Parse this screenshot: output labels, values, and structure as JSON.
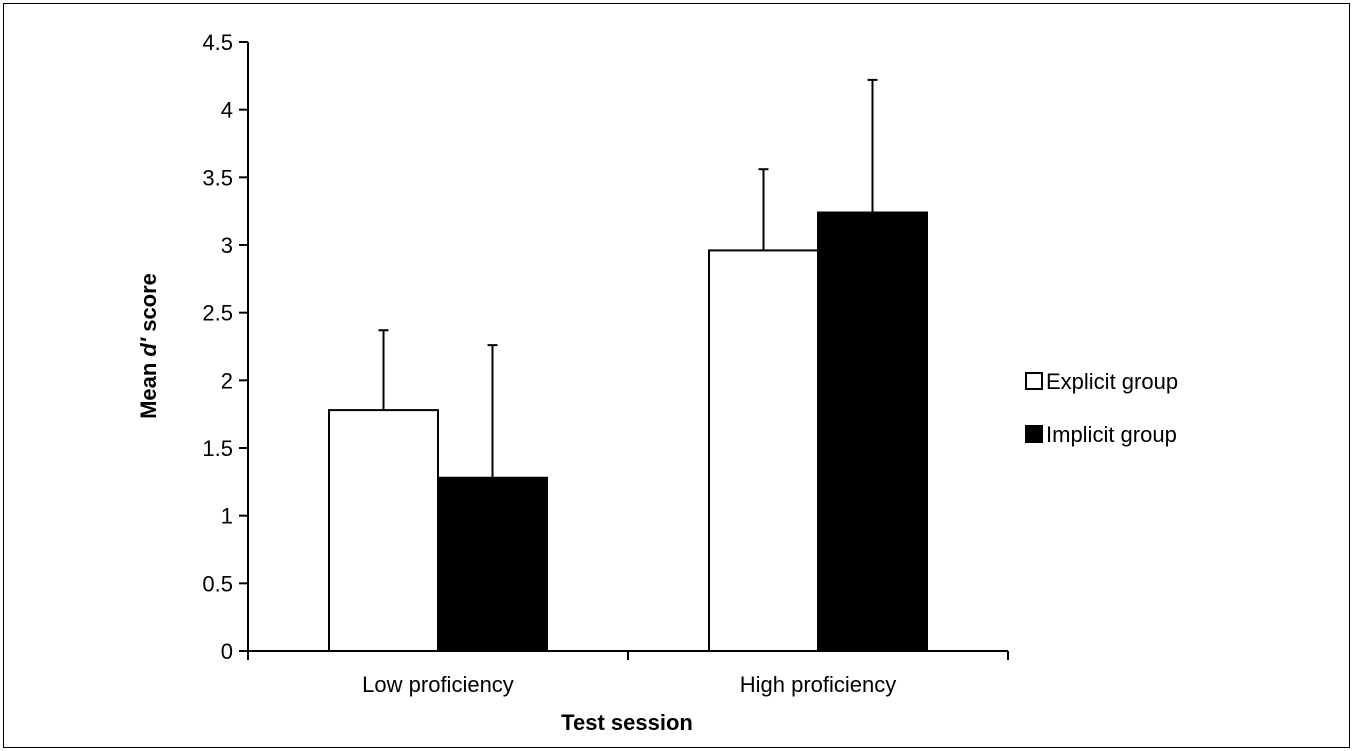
{
  "chart_data": {
    "type": "bar",
    "categories": [
      "Low proficiency",
      "High proficiency"
    ],
    "series": [
      {
        "name": "Explicit group",
        "values": [
          1.78,
          2.96
        ],
        "error": [
          0.59,
          0.6
        ],
        "color": "#ffffff"
      },
      {
        "name": "Implicit group",
        "values": [
          1.28,
          3.24
        ],
        "error": [
          0.98,
          0.98
        ],
        "color": "#000000"
      }
    ],
    "xlabel": "Test session",
    "ylabel_prefix": "Mean ",
    "ylabel_italic": "d'",
    "ylabel_suffix": " score",
    "ylim": [
      0,
      4.5
    ],
    "yticks": [
      "0",
      "0.5",
      "1",
      "1.5",
      "2",
      "2.5",
      "3",
      "3.5",
      "4",
      "4.5"
    ],
    "grid": false,
    "legend_position": "right"
  }
}
